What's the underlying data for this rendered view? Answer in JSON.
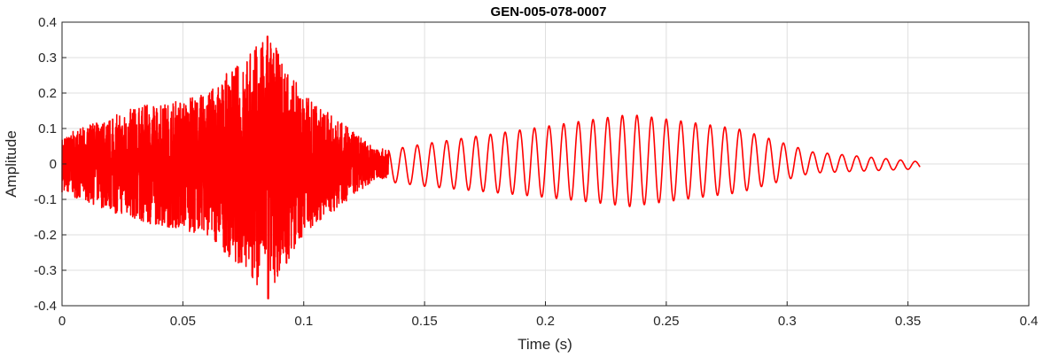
{
  "chart_data": {
    "type": "line",
    "title": "GEN-005-078-0007",
    "xlabel": "Time (s)",
    "ylabel": "Amplitude",
    "xlim": [
      0,
      0.4
    ],
    "ylim": [
      -0.4,
      0.4
    ],
    "x_ticks": [
      0,
      0.05,
      0.1,
      0.15,
      0.2,
      0.25,
      0.3,
      0.35,
      0.4
    ],
    "x_tick_labels": [
      "0",
      "0.05",
      "0.1",
      "0.15",
      "0.2",
      "0.25",
      "0.3",
      "0.35",
      "0.4"
    ],
    "y_ticks": [
      0.4,
      0.3,
      0.2,
      0.1,
      0,
      -0.1,
      -0.2,
      -0.3,
      -0.4
    ],
    "y_tick_labels": [
      "0.4",
      "0.3",
      "0.2",
      "0.1",
      "0",
      "-0.1",
      "-0.2",
      "-0.3",
      "-0.4"
    ],
    "grid": true,
    "series": [
      {
        "color": "#ff0000",
        "x_range": [
          0,
          0.355
        ],
        "description_points": [
          {
            "t": 0.0,
            "amp": 0.08
          },
          {
            "t": 0.03,
            "amp": 0.16
          },
          {
            "t": 0.06,
            "amp": 0.2
          },
          {
            "t": 0.085,
            "amp": 0.37
          },
          {
            "t": 0.1,
            "amp": 0.2
          },
          {
            "t": 0.13,
            "amp": 0.04
          },
          {
            "t": 0.15,
            "amp": 0.06
          },
          {
            "t": 0.2,
            "amp": 0.1
          },
          {
            "t": 0.235,
            "amp": 0.13
          },
          {
            "t": 0.28,
            "amp": 0.09
          },
          {
            "t": 0.31,
            "amp": 0.03
          },
          {
            "t": 0.355,
            "amp": 0.01
          }
        ],
        "peak_max": {
          "x": 0.085,
          "y": 0.36
        },
        "peak_min": {
          "x": 0.085,
          "y": -0.38
        }
      }
    ]
  }
}
